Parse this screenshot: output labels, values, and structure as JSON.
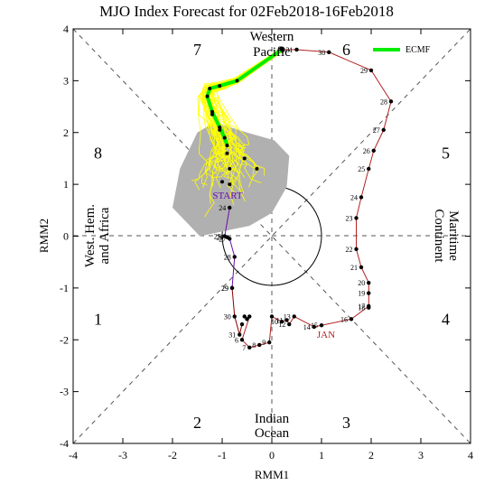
{
  "chart_data": {
    "type": "line",
    "title": "MJO Index Forecast for 02Feb2018-16Feb2018",
    "xlabel": "RMM1",
    "ylabel": "RMM2",
    "xlim": [
      -4,
      4
    ],
    "ylim": [
      -4,
      4
    ],
    "xticks": [
      -4,
      -3,
      -2,
      -1,
      0,
      1,
      2,
      3,
      4
    ],
    "yticks": [
      -4,
      -3,
      -2,
      -1,
      0,
      1,
      2,
      3,
      4
    ],
    "grid": false,
    "phase_numbers": [
      {
        "label": "1",
        "x": -3.5,
        "y": -1.6
      },
      {
        "label": "2",
        "x": -1.5,
        "y": -3.6
      },
      {
        "label": "3",
        "x": 1.5,
        "y": -3.6
      },
      {
        "label": "4",
        "x": 3.5,
        "y": -1.6
      },
      {
        "label": "5",
        "x": 3.5,
        "y": 1.6
      },
      {
        "label": "6",
        "x": 1.5,
        "y": 3.6
      },
      {
        "label": "7",
        "x": -1.5,
        "y": 3.6
      },
      {
        "label": "8",
        "x": -3.5,
        "y": 1.6
      }
    ],
    "region_labels": {
      "top_line1": "Western",
      "top_line2": "Pacific",
      "bottom_line1": "Indian",
      "bottom_line2": "Ocean",
      "left_line1": "West. Hem.",
      "left_line2": "and Africa",
      "right_line1": "Maritime",
      "right_line2": "Continent"
    },
    "month_label": "JAN",
    "start_label": "START",
    "legend": {
      "placement": "top-right",
      "entry": "ECMF",
      "color": "#00ee00"
    },
    "observed_dec": {
      "color": "#8b0000",
      "points": [
        {
          "day": "29",
          "x": -0.8,
          "y": -1.0
        },
        {
          "day": "30",
          "x": -0.75,
          "y": -1.55
        },
        {
          "day": "31",
          "x": -0.65,
          "y": -1.9
        },
        {
          "day": "",
          "x": -0.6,
          "y": -1.7
        }
      ]
    },
    "observed_jan": {
      "color": "#b22222",
      "points": [
        {
          "day": "",
          "x": -0.55,
          "y": -1.55
        },
        {
          "day": "",
          "x": -0.5,
          "y": -1.6
        },
        {
          "day": "",
          "x": -0.45,
          "y": -1.55
        },
        {
          "day": "6",
          "x": -0.6,
          "y": -2.0
        },
        {
          "day": "7",
          "x": -0.45,
          "y": -2.15
        },
        {
          "day": "8",
          "x": -0.25,
          "y": -2.1
        },
        {
          "day": "9",
          "x": -0.05,
          "y": -2.05
        },
        {
          "day": "",
          "x": 0.0,
          "y": -1.55
        },
        {
          "day": "10",
          "x": 0.2,
          "y": -1.65
        },
        {
          "day": "11",
          "x": 0.3,
          "y": -1.62
        },
        {
          "day": "12",
          "x": 0.35,
          "y": -1.7
        },
        {
          "day": "13",
          "x": 0.45,
          "y": -1.55
        },
        {
          "day": "14",
          "x": 0.85,
          "y": -1.75
        },
        {
          "day": "15",
          "x": 1.0,
          "y": -1.72
        },
        {
          "day": "16",
          "x": 1.6,
          "y": -1.6
        },
        {
          "day": "17",
          "x": 1.95,
          "y": -1.35
        },
        {
          "day": "18",
          "x": 1.95,
          "y": -1.38
        },
        {
          "day": "19",
          "x": 1.95,
          "y": -1.1
        },
        {
          "day": "20",
          "x": 1.95,
          "y": -0.9
        },
        {
          "day": "21",
          "x": 1.8,
          "y": -0.6
        },
        {
          "day": "22",
          "x": 1.7,
          "y": -0.25
        },
        {
          "day": "23",
          "x": 1.7,
          "y": 0.35
        },
        {
          "day": "24",
          "x": 1.8,
          "y": 0.75
        },
        {
          "day": "25",
          "x": 1.95,
          "y": 1.3
        },
        {
          "day": "26",
          "x": 2.05,
          "y": 1.65
        },
        {
          "day": "27",
          "x": 2.25,
          "y": 2.05
        },
        {
          "day": "28",
          "x": 2.4,
          "y": 2.6
        },
        {
          "day": "29",
          "x": 2.0,
          "y": 3.2
        },
        {
          "day": "30",
          "x": 1.15,
          "y": 3.55
        },
        {
          "day": "31",
          "x": 0.5,
          "y": 3.6
        },
        {
          "day": "",
          "x": 0.2,
          "y": 3.6
        }
      ]
    },
    "observed_feb": {
      "color": "#6a0dad",
      "points": [
        {
          "day": "29",
          "x": -0.8,
          "y": -1.0
        },
        {
          "day": "28",
          "x": -0.75,
          "y": -0.4
        },
        {
          "day": "27",
          "x": -0.85,
          "y": -0.05
        },
        {
          "day": "26",
          "x": -0.9,
          "y": -0.02
        },
        {
          "day": "25",
          "x": -0.95,
          "y": 0.0
        },
        {
          "day": "24",
          "x": -0.85,
          "y": 0.55
        }
      ]
    },
    "ensemble_mean": {
      "name": "ECMF",
      "color": "#00ee00",
      "points": [
        {
          "x": 0.2,
          "y": 3.6
        },
        {
          "x": -0.7,
          "y": 3.0
        },
        {
          "x": -1.05,
          "y": 2.9
        },
        {
          "x": -1.25,
          "y": 2.85
        },
        {
          "x": -1.3,
          "y": 2.7
        },
        {
          "x": -1.2,
          "y": 2.4
        },
        {
          "x": -1.05,
          "y": 2.1
        },
        {
          "x": -0.95,
          "y": 1.9
        },
        {
          "x": -0.9,
          "y": 1.75
        }
      ]
    },
    "forecast_dots": [
      {
        "x": -1.2,
        "y": 2.35
      },
      {
        "x": -1.05,
        "y": 2.05
      },
      {
        "x": -0.9,
        "y": 1.6
      },
      {
        "x": -0.55,
        "y": 1.5
      },
      {
        "x": -0.3,
        "y": 1.3
      },
      {
        "x": -0.85,
        "y": 1.3
      },
      {
        "x": -1.0,
        "y": 1.05
      },
      {
        "x": -0.85,
        "y": 1.0
      }
    ],
    "spread_polygon": [
      {
        "x": -1.5,
        "y": 2.0
      },
      {
        "x": -1.15,
        "y": 2.2
      },
      {
        "x": -0.5,
        "y": 2.0
      },
      {
        "x": 0.05,
        "y": 1.85
      },
      {
        "x": 0.35,
        "y": 1.55
      },
      {
        "x": 0.3,
        "y": 0.95
      },
      {
        "x": 0.0,
        "y": 0.45
      },
      {
        "x": -0.45,
        "y": 0.2
      },
      {
        "x": -1.45,
        "y": 0.0
      },
      {
        "x": -2.0,
        "y": 0.55
      },
      {
        "x": -1.85,
        "y": 1.3
      }
    ],
    "spread_color": "#b0b0b0",
    "member_color": "#ffff00"
  }
}
